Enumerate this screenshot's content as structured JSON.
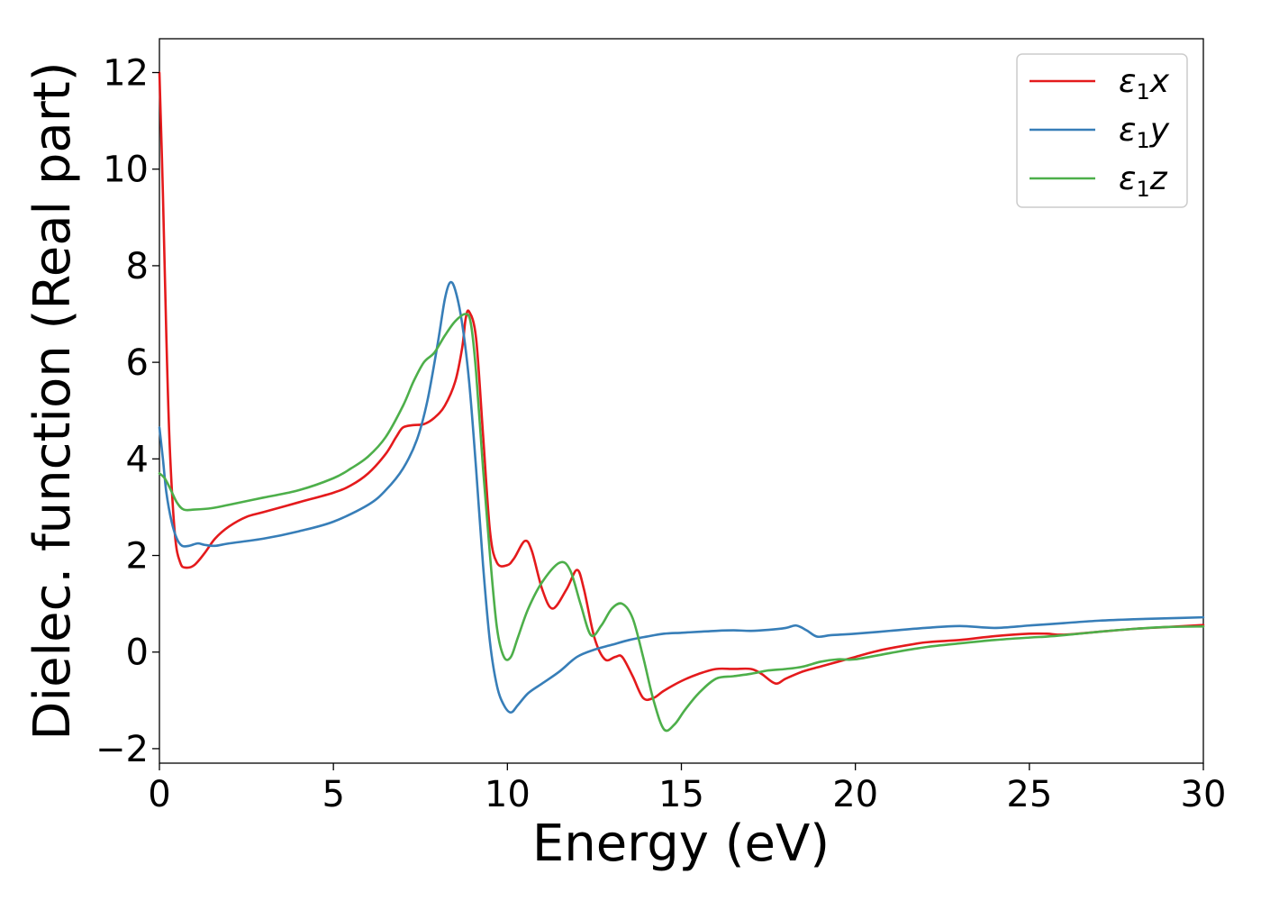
{
  "chart_data": {
    "type": "line",
    "title": "",
    "xlabel": "Energy (eV)",
    "ylabel": "Dielec. function (Real part)",
    "xlim": [
      0,
      30
    ],
    "ylim": [
      -2.3,
      12.7
    ],
    "xticks": [
      0,
      5,
      10,
      15,
      20,
      25,
      30
    ],
    "xtick_labels": [
      "0",
      "5",
      "10",
      "15",
      "20",
      "25",
      "30"
    ],
    "yticks": [
      -2,
      0,
      2,
      4,
      6,
      8,
      10,
      12
    ],
    "ytick_labels": [
      "−2",
      "0",
      "2",
      "4",
      "6",
      "8",
      "10",
      "12"
    ],
    "grid": false,
    "legend_position": "top-right",
    "series": [
      {
        "name": "ε1x",
        "legend_symbol": "ε",
        "legend_subscript": "1",
        "legend_var": "x",
        "color": "#e41a1c",
        "x": [
          0,
          0.1,
          0.2,
          0.3,
          0.45,
          0.6,
          0.75,
          1.0,
          1.3,
          1.6,
          2.0,
          2.5,
          3.0,
          4.0,
          5.0,
          5.5,
          6.0,
          6.5,
          6.8,
          7.0,
          7.3,
          7.6,
          7.9,
          8.2,
          8.5,
          8.7,
          8.8,
          8.9,
          9.1,
          9.3,
          9.5,
          9.7,
          10.0,
          10.2,
          10.5,
          10.7,
          11.0,
          11.3,
          11.7,
          12.0,
          12.2,
          12.5,
          12.8,
          13.1,
          13.3,
          13.6,
          13.9,
          14.2,
          14.5,
          15.0,
          15.5,
          16.0,
          16.5,
          17.0,
          17.3,
          17.7,
          18.0,
          18.5,
          19.0,
          19.5,
          20.0,
          20.5,
          21.0,
          22.0,
          23.0,
          24.0,
          25.0,
          25.5,
          26.0,
          27.0,
          28.0,
          29.0,
          30.0
        ],
        "values": [
          12.0,
          9.5,
          6.5,
          4.2,
          2.4,
          1.85,
          1.75,
          1.8,
          2.05,
          2.35,
          2.6,
          2.8,
          2.9,
          3.1,
          3.3,
          3.45,
          3.7,
          4.1,
          4.45,
          4.65,
          4.7,
          4.72,
          4.85,
          5.1,
          5.6,
          6.3,
          6.9,
          7.05,
          6.5,
          4.5,
          2.5,
          1.85,
          1.8,
          1.95,
          2.3,
          2.1,
          1.3,
          0.9,
          1.3,
          1.7,
          1.3,
          0.3,
          -0.15,
          -0.1,
          -0.1,
          -0.5,
          -0.95,
          -0.95,
          -0.8,
          -0.6,
          -0.45,
          -0.35,
          -0.35,
          -0.35,
          -0.45,
          -0.65,
          -0.55,
          -0.4,
          -0.3,
          -0.2,
          -0.1,
          0.0,
          0.08,
          0.2,
          0.25,
          0.33,
          0.38,
          0.38,
          0.36,
          0.42,
          0.48,
          0.52,
          0.56
        ]
      },
      {
        "name": "ε1y",
        "legend_symbol": "ε",
        "legend_subscript": "1",
        "legend_var": "y",
        "color": "#377eb8",
        "x": [
          0,
          0.1,
          0.2,
          0.35,
          0.5,
          0.65,
          0.85,
          1.1,
          1.3,
          1.6,
          2.0,
          3.0,
          4.0,
          5.0,
          6.0,
          6.5,
          7.0,
          7.4,
          7.7,
          8.0,
          8.2,
          8.35,
          8.5,
          8.7,
          8.9,
          9.1,
          9.3,
          9.5,
          9.7,
          9.9,
          10.1,
          10.3,
          10.6,
          11.0,
          11.5,
          12.0,
          12.5,
          13.0,
          13.5,
          14.0,
          14.5,
          15.0,
          15.5,
          16.0,
          16.5,
          17.0,
          17.5,
          18.0,
          18.3,
          18.6,
          18.9,
          19.3,
          20.0,
          21.0,
          22.0,
          23.0,
          24.0,
          25.0,
          26.0,
          27.0,
          28.0,
          29.0,
          30.0
        ],
        "values": [
          4.65,
          4.0,
          3.3,
          2.7,
          2.35,
          2.2,
          2.2,
          2.25,
          2.22,
          2.2,
          2.25,
          2.35,
          2.5,
          2.7,
          3.05,
          3.35,
          3.8,
          4.4,
          5.2,
          6.4,
          7.3,
          7.65,
          7.5,
          6.8,
          5.6,
          3.8,
          1.8,
          0.2,
          -0.7,
          -1.1,
          -1.25,
          -1.1,
          -0.85,
          -0.65,
          -0.4,
          -0.1,
          0.05,
          0.15,
          0.25,
          0.32,
          0.38,
          0.4,
          0.42,
          0.44,
          0.45,
          0.44,
          0.46,
          0.5,
          0.55,
          0.45,
          0.32,
          0.35,
          0.38,
          0.44,
          0.5,
          0.54,
          0.5,
          0.55,
          0.6,
          0.65,
          0.68,
          0.7,
          0.72
        ]
      },
      {
        "name": "ε1z",
        "legend_symbol": "ε",
        "legend_subscript": "1",
        "legend_var": "z",
        "color": "#4daf4a",
        "x": [
          0,
          0.15,
          0.3,
          0.5,
          0.7,
          1.0,
          1.5,
          2.0,
          3.0,
          4.0,
          5.0,
          5.5,
          6.0,
          6.5,
          7.0,
          7.3,
          7.6,
          7.9,
          8.2,
          8.5,
          8.8,
          8.95,
          9.1,
          9.3,
          9.5,
          9.7,
          9.9,
          10.1,
          10.3,
          10.6,
          11.0,
          11.5,
          11.8,
          12.1,
          12.4,
          12.7,
          13.0,
          13.3,
          13.6,
          13.9,
          14.2,
          14.5,
          14.8,
          15.1,
          15.5,
          16.0,
          16.5,
          17.0,
          17.5,
          18.0,
          18.5,
          19.0,
          19.5,
          20.0,
          21.0,
          22.0,
          23.0,
          24.0,
          25.0,
          25.5,
          26.0,
          27.0,
          28.0,
          29.0,
          30.0
        ],
        "values": [
          3.7,
          3.6,
          3.4,
          3.1,
          2.95,
          2.95,
          2.98,
          3.05,
          3.2,
          3.35,
          3.6,
          3.8,
          4.05,
          4.45,
          5.1,
          5.6,
          6.0,
          6.2,
          6.55,
          6.85,
          7.0,
          6.8,
          5.8,
          3.8,
          2.0,
          0.5,
          -0.1,
          -0.1,
          0.3,
          0.9,
          1.45,
          1.85,
          1.7,
          1.0,
          0.35,
          0.55,
          0.9,
          1.0,
          0.7,
          -0.1,
          -1.0,
          -1.6,
          -1.5,
          -1.2,
          -0.85,
          -0.55,
          -0.5,
          -0.45,
          -0.38,
          -0.35,
          -0.3,
          -0.2,
          -0.15,
          -0.15,
          -0.02,
          0.1,
          0.18,
          0.25,
          0.3,
          0.32,
          0.35,
          0.42,
          0.48,
          0.52,
          0.53
        ]
      }
    ]
  }
}
